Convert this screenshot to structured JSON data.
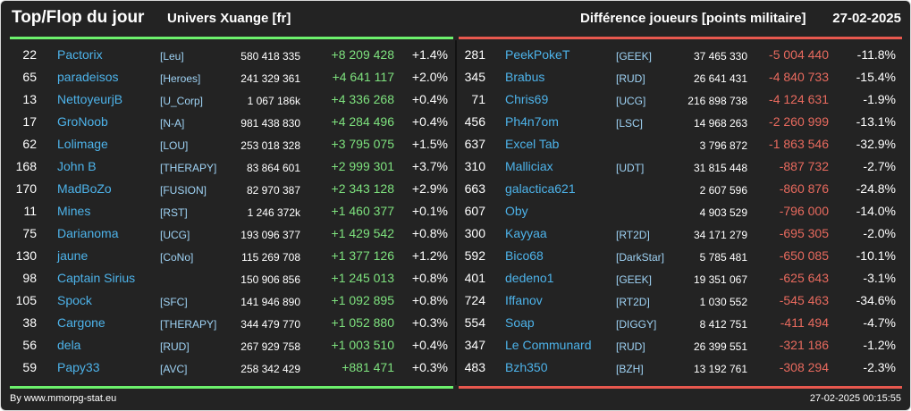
{
  "header": {
    "title": "Top/Flop du jour",
    "universe": "Univers Xuange [fr]",
    "metric": "Différence joueurs [points militaire]",
    "date": "27-02-2025"
  },
  "colors": {
    "gain": "#7ee27e",
    "loss": "#e86a5e",
    "name": "#4db3ea",
    "background": "#232323"
  },
  "top": [
    {
      "rank": "22",
      "name": "Pactorix",
      "tag": "[Leu]",
      "points": "580 418 335",
      "diff": "+8 209 428",
      "pct": "+1.4%"
    },
    {
      "rank": "65",
      "name": "paradeisos",
      "tag": "[Heroes]",
      "points": "241 329 361",
      "diff": "+4 641 117",
      "pct": "+2.0%"
    },
    {
      "rank": "13",
      "name": "NettoyeurjB",
      "tag": "[U_Corp]",
      "points": "1 067 186k",
      "diff": "+4 336 268",
      "pct": "+0.4%"
    },
    {
      "rank": "17",
      "name": "GroNoob",
      "tag": "[N-A]",
      "points": "981 438 830",
      "diff": "+4 284 496",
      "pct": "+0.4%"
    },
    {
      "rank": "62",
      "name": "Lolimage",
      "tag": "[LOU]",
      "points": "253 018 328",
      "diff": "+3 795 075",
      "pct": "+1.5%"
    },
    {
      "rank": "168",
      "name": "John B",
      "tag": "[THERAPY]",
      "points": "83 864 601",
      "diff": "+2 999 301",
      "pct": "+3.7%"
    },
    {
      "rank": "170",
      "name": "MadBoZo",
      "tag": "[FUSION]",
      "points": "82 970 387",
      "diff": "+2 343 128",
      "pct": "+2.9%"
    },
    {
      "rank": "11",
      "name": "Mines",
      "tag": "[RST]",
      "points": "1 246 372k",
      "diff": "+1 460 377",
      "pct": "+0.1%"
    },
    {
      "rank": "75",
      "name": "Darianoma",
      "tag": "[UCG]",
      "points": "193 096 377",
      "diff": "+1 429 542",
      "pct": "+0.8%"
    },
    {
      "rank": "130",
      "name": "jaune",
      "tag": "[CoNo]",
      "points": "115 269 708",
      "diff": "+1 377 126",
      "pct": "+1.2%"
    },
    {
      "rank": "98",
      "name": "Captain Sirius",
      "tag": "",
      "points": "150 906 856",
      "diff": "+1 245 013",
      "pct": "+0.8%"
    },
    {
      "rank": "105",
      "name": "Spock",
      "tag": "[SFC]",
      "points": "141 946 890",
      "diff": "+1 092 895",
      "pct": "+0.8%"
    },
    {
      "rank": "38",
      "name": "Cargone",
      "tag": "[THERAPY]",
      "points": "344 479 770",
      "diff": "+1 052 880",
      "pct": "+0.3%"
    },
    {
      "rank": "56",
      "name": "dela",
      "tag": "[RUD]",
      "points": "267 929 758",
      "diff": "+1 003 510",
      "pct": "+0.4%"
    },
    {
      "rank": "59",
      "name": "Papy33",
      "tag": "[AVC]",
      "points": "258 342 429",
      "diff": "+881 471",
      "pct": "+0.3%"
    }
  ],
  "flop": [
    {
      "rank": "281",
      "name": "PeekPokeT",
      "tag": "[GEEK]",
      "points": "37 465 330",
      "diff": "-5 004 440",
      "pct": "-11.8%"
    },
    {
      "rank": "345",
      "name": "Brabus",
      "tag": "[RUD]",
      "points": "26 641 431",
      "diff": "-4 840 733",
      "pct": "-15.4%"
    },
    {
      "rank": "71",
      "name": "Chris69",
      "tag": "[UCG]",
      "points": "216 898 738",
      "diff": "-4 124 631",
      "pct": "-1.9%"
    },
    {
      "rank": "456",
      "name": "Ph4n7om",
      "tag": "[LSC]",
      "points": "14 968 263",
      "diff": "-2 260 999",
      "pct": "-13.1%"
    },
    {
      "rank": "637",
      "name": "Excel Tab",
      "tag": "",
      "points": "3 796 872",
      "diff": "-1 863 546",
      "pct": "-32.9%"
    },
    {
      "rank": "310",
      "name": "Malliciax",
      "tag": "[UDT]",
      "points": "31 815 448",
      "diff": "-887 732",
      "pct": "-2.7%"
    },
    {
      "rank": "663",
      "name": "galactica621",
      "tag": "",
      "points": "2 607 596",
      "diff": "-860 876",
      "pct": "-24.8%"
    },
    {
      "rank": "607",
      "name": "Oby",
      "tag": "",
      "points": "4 903 529",
      "diff": "-796 000",
      "pct": "-14.0%"
    },
    {
      "rank": "300",
      "name": "Kayyaa",
      "tag": "[RT2D]",
      "points": "34 171 279",
      "diff": "-695 305",
      "pct": "-2.0%"
    },
    {
      "rank": "592",
      "name": "Bico68",
      "tag": "[DarkStar]",
      "points": "5 785 481",
      "diff": "-650 085",
      "pct": "-10.1%"
    },
    {
      "rank": "401",
      "name": "dedeno1",
      "tag": "[GEEK]",
      "points": "19 351 067",
      "diff": "-625 643",
      "pct": "-3.1%"
    },
    {
      "rank": "724",
      "name": "Iffanov",
      "tag": "[RT2D]",
      "points": "1 030 552",
      "diff": "-545 463",
      "pct": "-34.6%"
    },
    {
      "rank": "554",
      "name": "Soap",
      "tag": "[DIGGY]",
      "points": "8 412 751",
      "diff": "-411 494",
      "pct": "-4.7%"
    },
    {
      "rank": "347",
      "name": "Le Communard",
      "tag": "[RUD]",
      "points": "26 399 551",
      "diff": "-321 186",
      "pct": "-1.2%"
    },
    {
      "rank": "483",
      "name": "Bzh350",
      "tag": "[BZH]",
      "points": "13 192 761",
      "diff": "-308 294",
      "pct": "-2.3%"
    }
  ],
  "footer": {
    "credit": "By www.mmorpg-stat.eu",
    "timestamp": "27-02-2025 00:15:55"
  }
}
